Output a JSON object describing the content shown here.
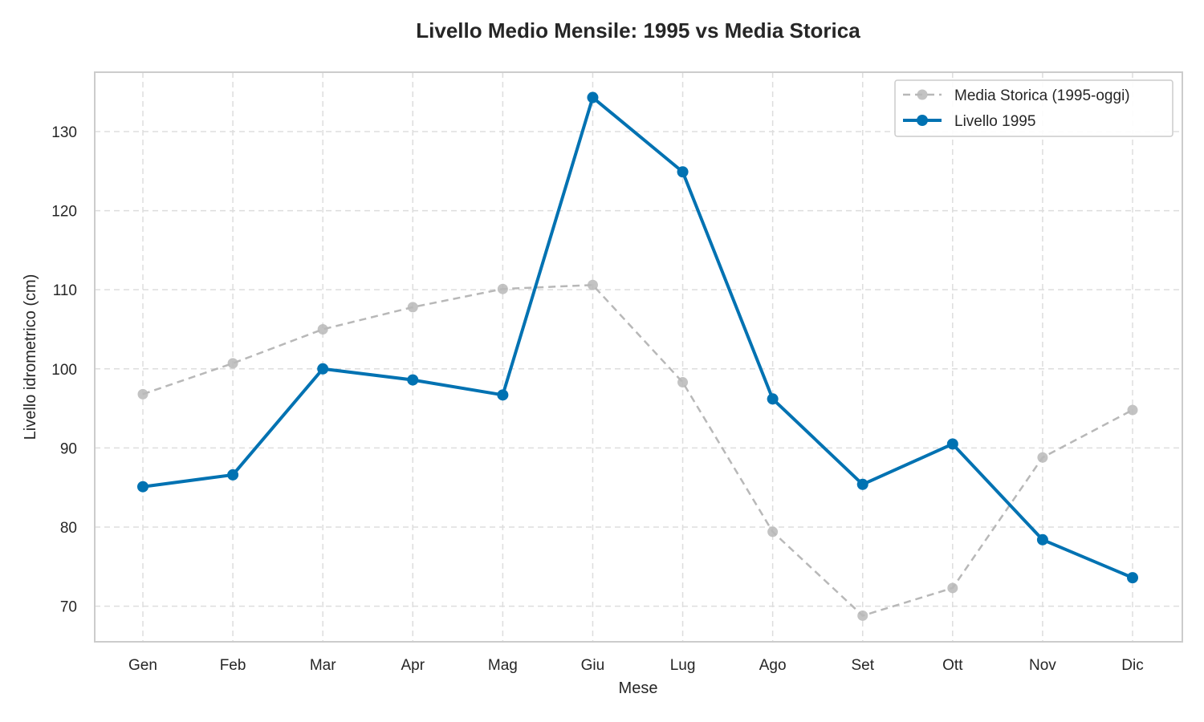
{
  "chart_data": {
    "type": "line",
    "title": "Livello Medio Mensile: 1995 vs Media Storica",
    "xlabel": "Mese",
    "ylabel": "Livello idrometrico (cm)",
    "categories": [
      "Gen",
      "Feb",
      "Mar",
      "Apr",
      "Mag",
      "Giu",
      "Lug",
      "Ago",
      "Set",
      "Ott",
      "Nov",
      "Dic"
    ],
    "ylim": [
      65.5,
      137.5
    ],
    "yticks": [
      70,
      80,
      90,
      100,
      110,
      120,
      130
    ],
    "grid": true,
    "legend_position": "top-right",
    "series": [
      {
        "name": "Media Storica (1995-oggi)",
        "color": "#b8b8b8",
        "style": "dashed",
        "values": [
          96.8,
          100.7,
          105.0,
          107.8,
          110.1,
          110.6,
          98.3,
          79.4,
          68.8,
          72.3,
          88.8,
          94.8
        ]
      },
      {
        "name": "Livello 1995",
        "color": "#0072b2",
        "style": "solid",
        "values": [
          85.1,
          86.6,
          100.0,
          98.6,
          96.7,
          134.3,
          124.9,
          96.2,
          85.4,
          90.5,
          78.4,
          73.6
        ]
      }
    ]
  }
}
